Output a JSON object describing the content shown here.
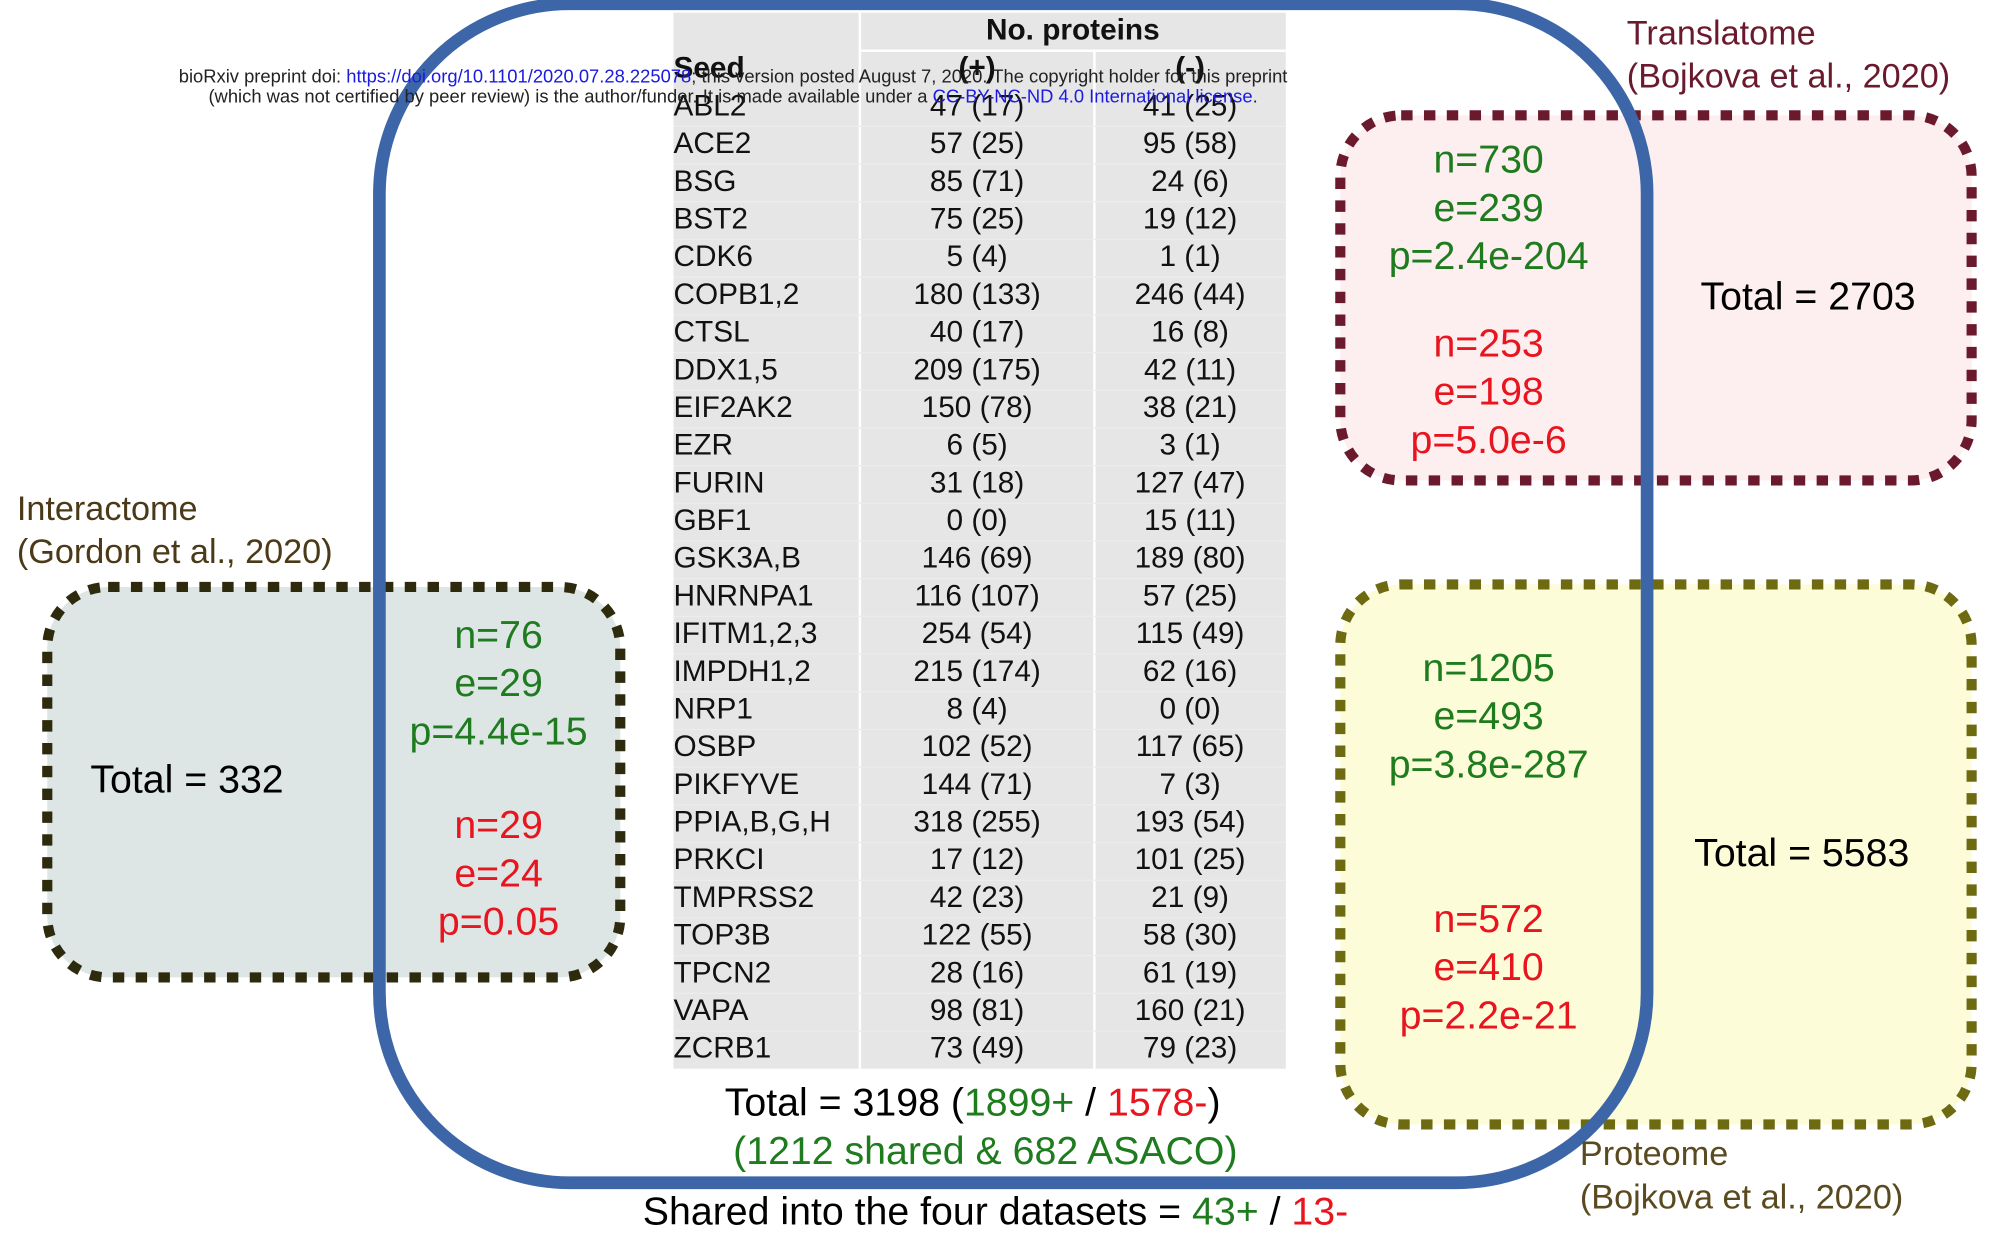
{
  "watermark": {
    "line1": {
      "prefix": "bioRxiv preprint doi: ",
      "link": "https://doi.org/10.1101/2020.07.28.225078",
      "suffix": "; this version posted August 7, 2020. The copyright holder for this preprint"
    },
    "line2": {
      "prefix": "(which was not certified by peer review) is the author/funder. It is made available under a ",
      "link": "CC-BY-NC-ND 4.0 International license",
      "suffix": "."
    }
  },
  "table": {
    "group_header": "No. proteins",
    "columns": [
      "Seed",
      "(+)",
      "(-)"
    ],
    "rows": [
      [
        "ABL2",
        "47 (17)",
        "41 (25)"
      ],
      [
        "ACE2",
        "57 (25)",
        "95 (58)"
      ],
      [
        "BSG",
        "85 (71)",
        "24 (6)"
      ],
      [
        "BST2",
        "75 (25)",
        "19 (12)"
      ],
      [
        "CDK6",
        "5 (4)",
        "1 (1)"
      ],
      [
        "COPB1,2",
        "180 (133)",
        "246 (44)"
      ],
      [
        "CTSL",
        "40 (17)",
        "16 (8)"
      ],
      [
        "DDX1,5",
        "209 (175)",
        "42 (11)"
      ],
      [
        "EIF2AK2",
        "150 (78)",
        "38 (21)"
      ],
      [
        "EZR",
        "6 (5)",
        "3 (1)"
      ],
      [
        "FURIN",
        "31 (18)",
        "127 (47)"
      ],
      [
        "GBF1",
        "0 (0)",
        "15 (11)"
      ],
      [
        "GSK3A,B",
        "146 (69)",
        "189 (80)"
      ],
      [
        "HNRNPA1",
        "116 (107)",
        "57 (25)"
      ],
      [
        "IFITM1,2,3",
        "254 (54)",
        "115 (49)"
      ],
      [
        "IMPDH1,2",
        "215 (174)",
        "62 (16)"
      ],
      [
        "NRP1",
        "8 (4)",
        "0 (0)"
      ],
      [
        "OSBP",
        "102 (52)",
        "117 (65)"
      ],
      [
        "PIKFYVE",
        "144 (71)",
        "7 (3)"
      ],
      [
        "PPIA,B,G,H",
        "318 (255)",
        "193 (54)"
      ],
      [
        "PRKCI",
        "17 (12)",
        "101 (25)"
      ],
      [
        "TMPRSS2",
        "42 (23)",
        "21 (9)"
      ],
      [
        "TOP3B",
        "122 (55)",
        "58 (30)"
      ],
      [
        "TPCN2",
        "28 (16)",
        "61 (19)"
      ],
      [
        "VAPA",
        "98 (81)",
        "160 (21)"
      ],
      [
        "ZCRB1",
        "73 (49)",
        "79 (23)"
      ]
    ]
  },
  "asaco": {
    "total_prefix": "Total = 3198 (",
    "plus": "1899+",
    "sep": " / ",
    "minus": "1578-",
    "close": ")",
    "shared": "(1212 shared & 682 ASACO)"
  },
  "shared_four": {
    "prefix": "Shared into the four datasets = ",
    "plus": "43+",
    "sep": " / ",
    "minus": "13-"
  },
  "interactome": {
    "title": "Interactome",
    "source": "(Gordon et al., 2020)",
    "total": "Total = 332",
    "positive": [
      "n=76",
      "e=29",
      "p=4.4e-15"
    ],
    "negative": [
      "n=29",
      "e=24",
      "p=0.05"
    ]
  },
  "translatome": {
    "title": "Translatome",
    "source": "(Bojkova et al., 2020)",
    "total": "Total = 2703",
    "positive": [
      "n=730",
      "e=239",
      "p=2.4e-204"
    ],
    "negative": [
      "n=253",
      "e=198",
      "p=5.0e-6"
    ]
  },
  "proteome": {
    "title": "Proteome",
    "source": "(Bojkova et al., 2020)",
    "total": "Total = 5583",
    "positive": [
      "n=1205",
      "e=493",
      "p=3.8e-287"
    ],
    "negative": [
      "n=572",
      "e=410",
      "p=2.2e-21"
    ]
  }
}
